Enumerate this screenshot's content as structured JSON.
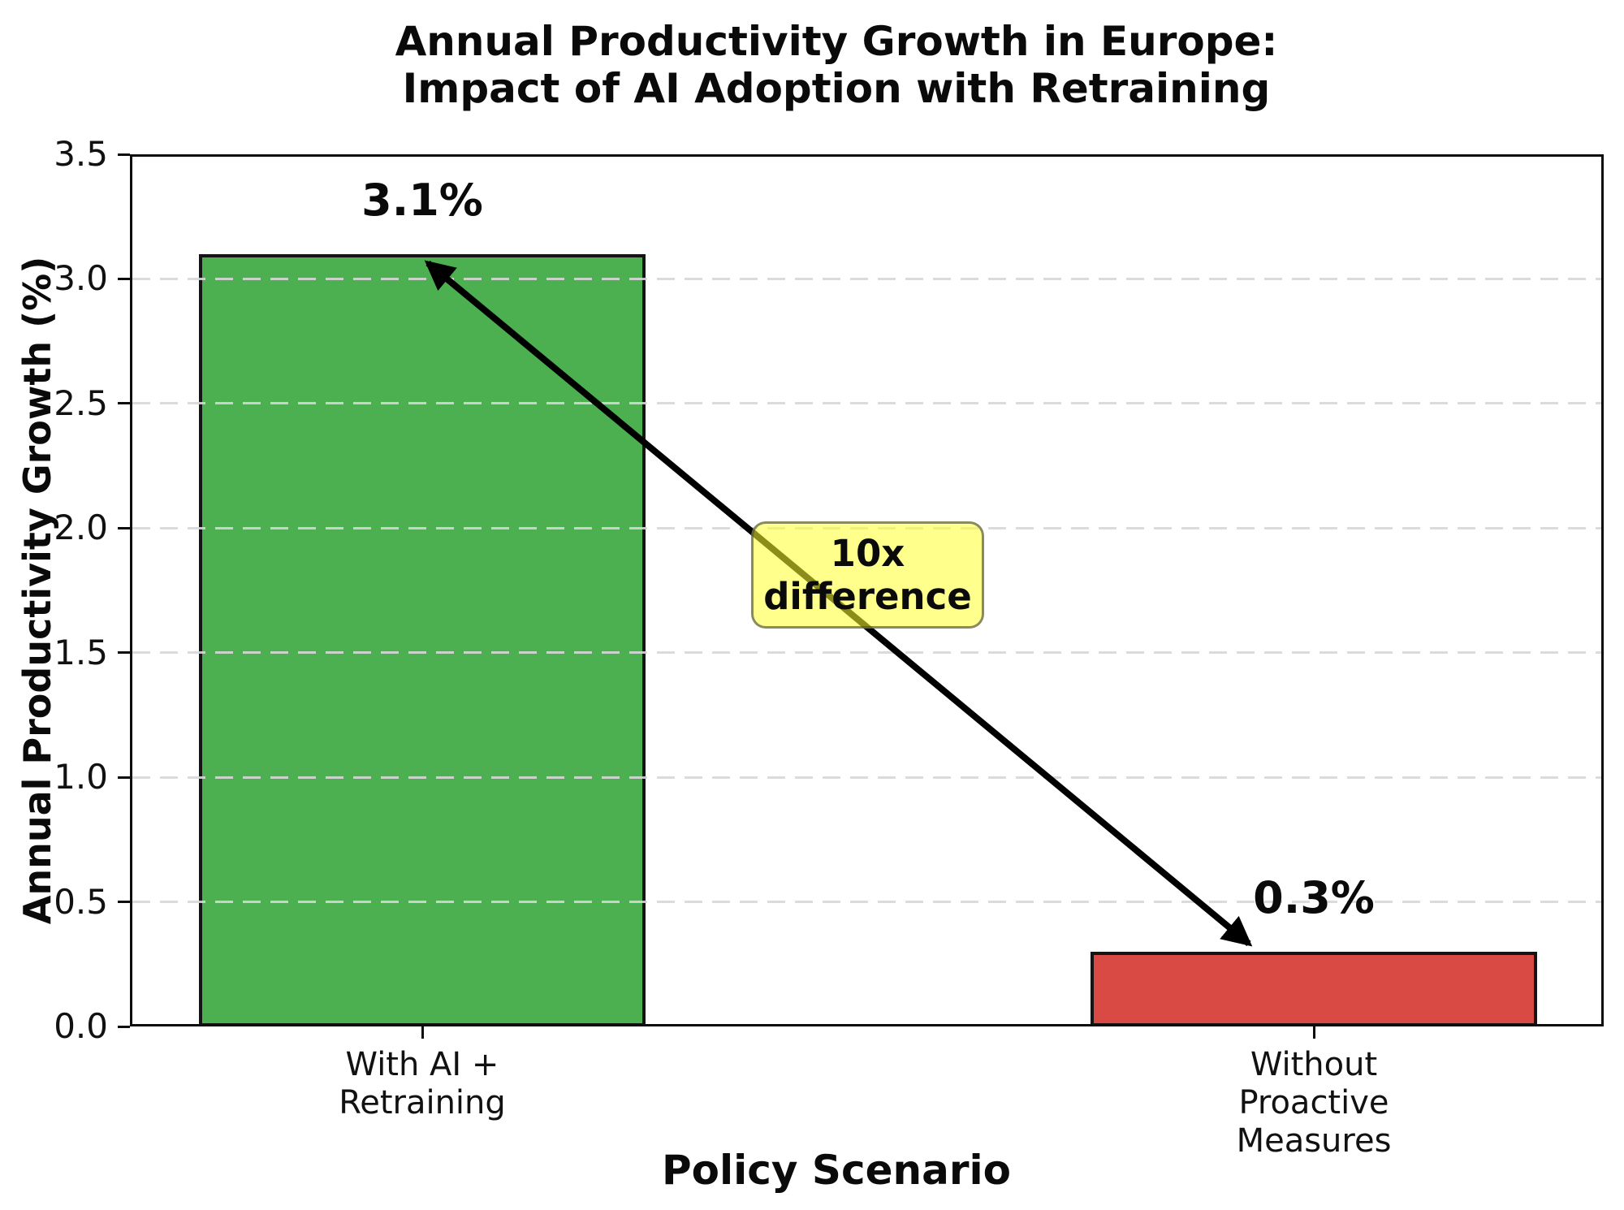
{
  "chart_data": {
    "type": "bar",
    "title_lines": [
      "Annual Productivity Growth in Europe:",
      "Impact of AI Adoption with Retraining"
    ],
    "xlabel": "Policy Scenario",
    "ylabel": "Annual Productivity Growth (%)",
    "categories": [
      "With AI +\nRetraining",
      "Without\nProactive\nMeasures"
    ],
    "values": [
      3.1,
      0.3
    ],
    "bar_labels": [
      "3.1%",
      "0.3%"
    ],
    "bar_colors": [
      "#4caf50",
      "#d94a45"
    ],
    "bar_edge_color": "#141414",
    "ylim": [
      0,
      3.5
    ],
    "yticks": [
      0.0,
      0.5,
      1.0,
      1.5,
      2.0,
      2.5,
      3.0,
      3.5
    ],
    "ytick_labels": [
      "0.0",
      "0.5",
      "1.0",
      "1.5",
      "2.0",
      "2.5",
      "3.0",
      "3.5"
    ],
    "grid": "horizontal dashed lightgray",
    "legend": "none",
    "annotation": {
      "lines": [
        "10x",
        "difference"
      ],
      "box_fill": "#ffff2d",
      "box_style": "rounded translucent yellow, gray edge",
      "arrow": "double-headed black arrow from top of first bar to top of second bar"
    }
  }
}
